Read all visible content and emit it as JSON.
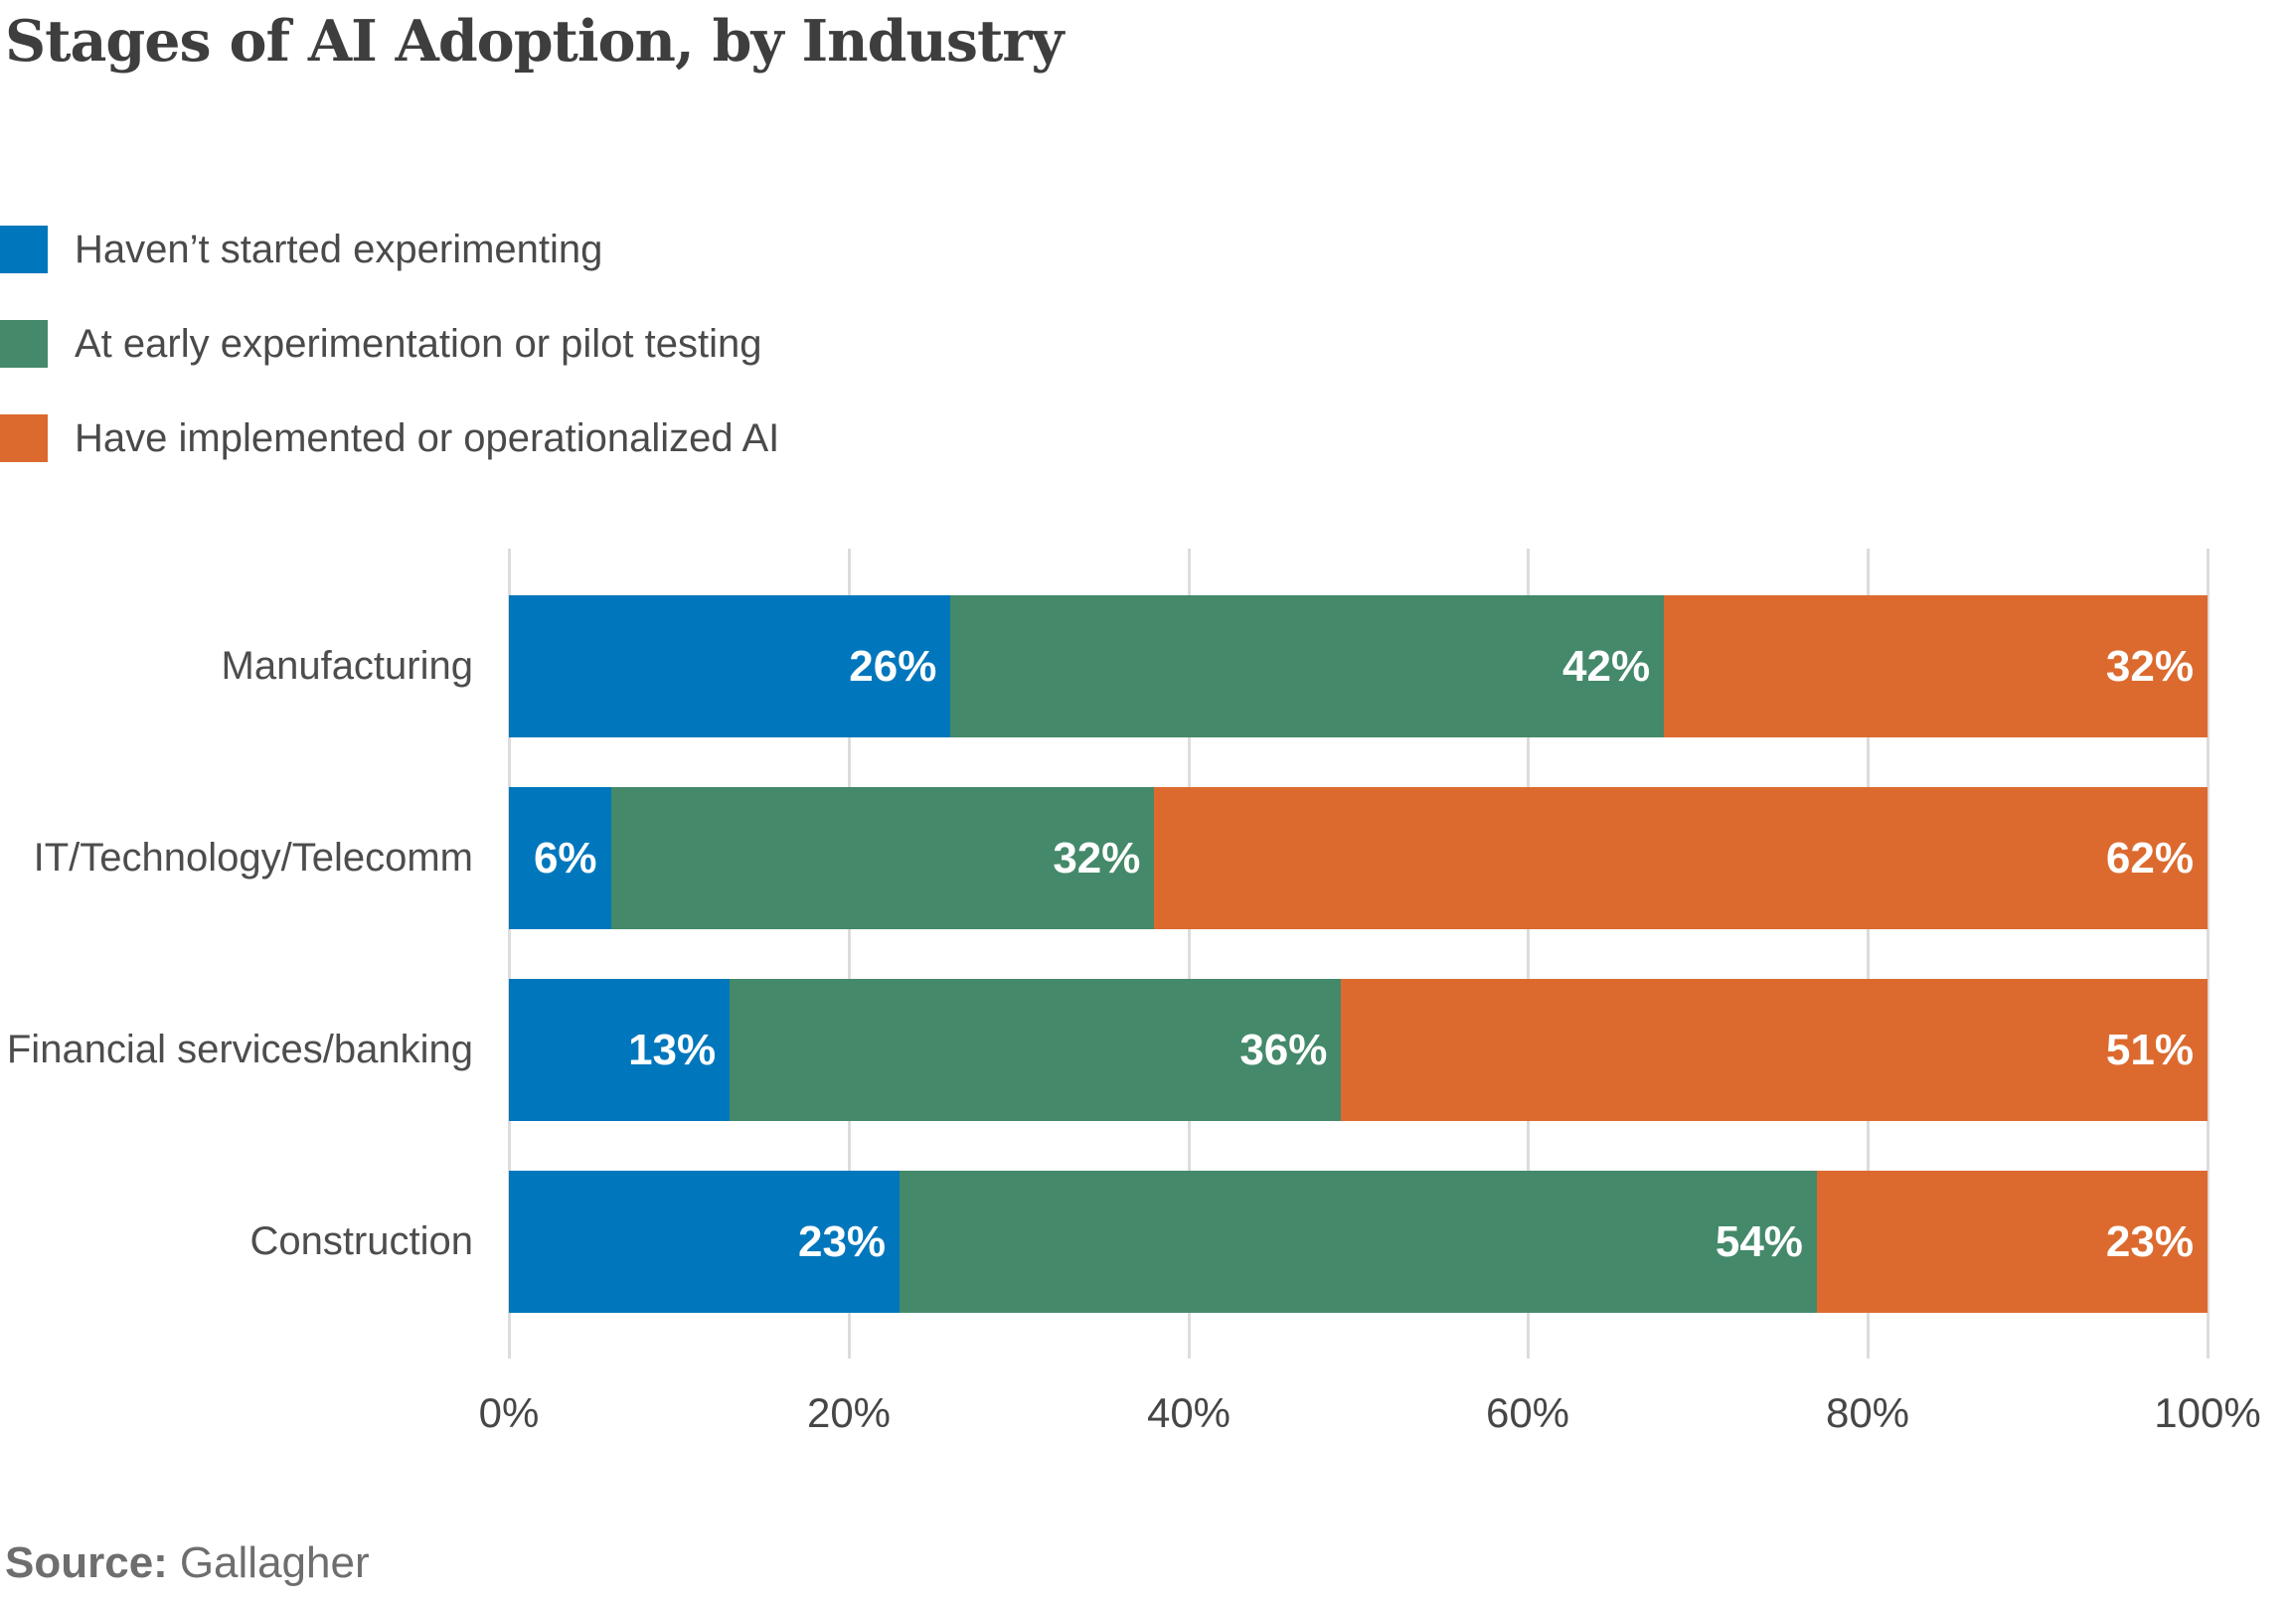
{
  "title": "Stages of AI Adoption, by Industry",
  "legend": {
    "items": [
      {
        "label": "Haven’t started experimenting",
        "color": "#0077bc"
      },
      {
        "label": "At early experimentation or pilot testing",
        "color": "#44896a"
      },
      {
        "label": "Have implemented or operationalized AI",
        "color": "#dc6a2f"
      }
    ]
  },
  "source": {
    "label": "Source:",
    "value": "Gallagher"
  },
  "chart_data": {
    "type": "bar",
    "orientation": "horizontal",
    "stacked": true,
    "title": "Stages of AI Adoption, by Industry",
    "categories": [
      "Manufacturing",
      "IT/Technology/Telecomm",
      "Financial services/banking",
      "Construction"
    ],
    "series": [
      {
        "name": "Haven’t started experimenting",
        "color": "#0077bc",
        "values": [
          26,
          6,
          13,
          23
        ]
      },
      {
        "name": "At early experimentation or pilot testing",
        "color": "#44896a",
        "values": [
          42,
          32,
          36,
          54
        ]
      },
      {
        "name": "Have implemented or operationalized AI",
        "color": "#dc6a2f",
        "values": [
          32,
          62,
          51,
          23
        ]
      }
    ],
    "value_label_format": "{v}%",
    "xlim": [
      0,
      100
    ],
    "x_ticks": [
      "0%",
      "20%",
      "40%",
      "60%",
      "80%",
      "100%"
    ],
    "x_tick_values": [
      0,
      20,
      40,
      60,
      80,
      100
    ],
    "xlabel": "",
    "ylabel": "",
    "grid": "vertical",
    "legend_position": "top-left"
  },
  "colors": {
    "background": "#ffffff",
    "gridline": "#dcdcdc",
    "title_text": "#3e3e3e",
    "category_text": "#4d4d4d",
    "axis_text": "#464646",
    "value_text": "#ffffff",
    "source_text": "#6e6e6e"
  }
}
